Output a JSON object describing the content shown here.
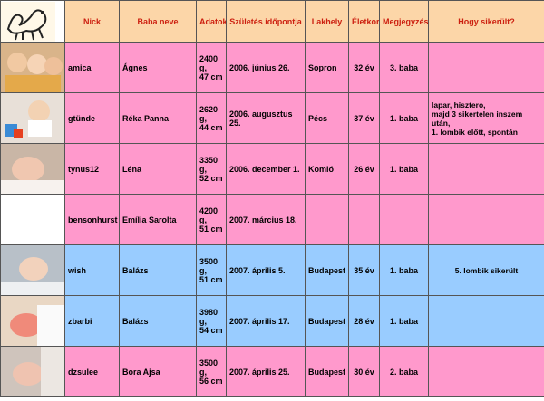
{
  "headers": {
    "nick": "Nick",
    "baba_neve": "Baba neve",
    "adatok": "Adatok",
    "szuletes": "Születés időpontja",
    "lakhely": "Lakhely",
    "eletkor": "Életkor",
    "megjegyzes": "Megjegyzés",
    "hogy": "Hogy sikerült?"
  },
  "rows": [
    {
      "nick": "amica",
      "baba": "Ágnes",
      "adatok_1": "2400 g,",
      "adatok_2": "47 cm",
      "datum": "2006. június 26.",
      "lakhely": "Sopron",
      "eletkor": "32 év",
      "megjegyzes": "3. baba",
      "hogy": [
        "",
        "",
        ""
      ]
    },
    {
      "nick": "gtünde",
      "baba": "Réka Panna",
      "adatok_1": "2620 g,",
      "adatok_2": "44 cm",
      "datum": "2006. augusztus 25.",
      "lakhely": "Pécs",
      "eletkor": "37 év",
      "megjegyzes": "1. baba",
      "hogy": [
        "lapar, hisztero,",
        "majd 3 sikertelen inszem után,",
        "1. lombik előtt, spontán"
      ]
    },
    {
      "nick": "tynus12",
      "baba": "Léna",
      "adatok_1": "3350 g,",
      "adatok_2": "52 cm",
      "datum": "2006. december 1.",
      "lakhely": "Komló",
      "eletkor": "26 év",
      "megjegyzes": "1. baba",
      "hogy": [
        "",
        "",
        ""
      ]
    },
    {
      "nick": "bensonhurst",
      "baba": "Emília Sarolta",
      "adatok_1": "4200 g,",
      "adatok_2": "51 cm",
      "datum": "2007. március 18.",
      "lakhely": "",
      "eletkor": "",
      "megjegyzes": "",
      "hogy": [
        "",
        "",
        ""
      ]
    },
    {
      "nick": "wish",
      "baba": "Balázs",
      "adatok_1": "3500 g,",
      "adatok_2": "51 cm",
      "datum": "2007. április 5.",
      "lakhely": "Budapest",
      "eletkor": "35 év",
      "megjegyzes": "1. baba",
      "hogy": [
        "5. lombik sikerült",
        "",
        ""
      ]
    },
    {
      "nick": "zbarbi",
      "baba": "Balázs",
      "adatok_1": "3980 g,",
      "adatok_2": "54 cm",
      "datum": "2007. április 17.",
      "lakhely": "Budapest",
      "eletkor": "28 év",
      "megjegyzes": "1. baba",
      "hogy": [
        "",
        "",
        ""
      ]
    },
    {
      "nick": "dzsulee",
      "baba": "Bora Ajsa",
      "adatok_1": "3500 g,",
      "adatok_2": "56 cm",
      "datum": "2007. április 25.",
      "lakhely": "Budapest",
      "eletkor": "30 év",
      "megjegyzes": "2. baba",
      "hogy": [
        "",
        "",
        ""
      ]
    }
  ],
  "colors": {
    "header_bg": "#fcd6a8",
    "header_text": "#cc1f0f",
    "pink_row": "#ff99cc",
    "blue_row": "#99ccff"
  }
}
